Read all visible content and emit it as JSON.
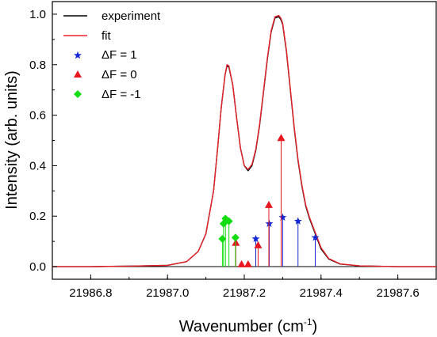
{
  "chart_data": {
    "type": "line",
    "xlabel": "Wavenumber (cm",
    "xlabel_sup": "-1",
    "xlabel_suffix": ")",
    "ylabel": "Intensity (arb. units)",
    "xlim": [
      21986.7,
      21987.7
    ],
    "ylim": [
      -0.05,
      1.05
    ],
    "xticks": [
      "21986.8",
      "21987.0",
      "21987.2",
      "21987.4",
      "21987.6"
    ],
    "xtick_values": [
      21986.8,
      21987.0,
      21987.2,
      21987.4,
      21987.6
    ],
    "yticks": [
      "0.0",
      "0.2",
      "0.4",
      "0.6",
      "0.8",
      "1.0"
    ],
    "ytick_values": [
      0.0,
      0.2,
      0.4,
      0.6,
      0.8,
      1.0
    ],
    "grid": false,
    "legend_position": "top-left",
    "series": [
      {
        "name": "experiment",
        "kind": "line",
        "color": "#000000",
        "x": [
          21986.7,
          21986.8,
          21986.9,
          21987.0,
          21987.05,
          21987.08,
          21987.1,
          21987.12,
          21987.13,
          21987.14,
          21987.15,
          21987.155,
          21987.16,
          21987.17,
          21987.18,
          21987.19,
          21987.2,
          21987.21,
          21987.22,
          21987.23,
          21987.24,
          21987.25,
          21987.26,
          21987.27,
          21987.28,
          21987.29,
          21987.295,
          21987.3,
          21987.31,
          21987.32,
          21987.33,
          21987.34,
          21987.35,
          21987.36,
          21987.37,
          21987.38,
          21987.39,
          21987.4,
          21987.42,
          21987.45,
          21987.5,
          21987.6,
          21987.7
        ],
        "y": [
          0.0,
          0.0,
          0.002,
          0.005,
          0.02,
          0.06,
          0.13,
          0.3,
          0.46,
          0.63,
          0.76,
          0.795,
          0.79,
          0.72,
          0.59,
          0.47,
          0.4,
          0.38,
          0.4,
          0.46,
          0.56,
          0.69,
          0.82,
          0.93,
          0.985,
          0.99,
          0.98,
          0.96,
          0.85,
          0.7,
          0.55,
          0.42,
          0.32,
          0.24,
          0.19,
          0.15,
          0.11,
          0.07,
          0.03,
          0.01,
          0.003,
          0.0,
          0.0
        ]
      },
      {
        "name": "fit",
        "kind": "line",
        "color": "#e8232a",
        "x": [
          21986.7,
          21986.8,
          21986.9,
          21987.0,
          21987.05,
          21987.08,
          21987.1,
          21987.12,
          21987.13,
          21987.14,
          21987.15,
          21987.155,
          21987.16,
          21987.17,
          21987.18,
          21987.19,
          21987.2,
          21987.21,
          21987.22,
          21987.23,
          21987.24,
          21987.25,
          21987.26,
          21987.27,
          21987.28,
          21987.29,
          21987.295,
          21987.3,
          21987.31,
          21987.32,
          21987.33,
          21987.34,
          21987.35,
          21987.36,
          21987.37,
          21987.38,
          21987.39,
          21987.4,
          21987.42,
          21987.45,
          21987.5,
          21987.6,
          21987.7
        ],
        "y": [
          0.0,
          0.0,
          0.002,
          0.005,
          0.02,
          0.06,
          0.13,
          0.3,
          0.46,
          0.63,
          0.76,
          0.8,
          0.795,
          0.72,
          0.59,
          0.47,
          0.4,
          0.385,
          0.405,
          0.465,
          0.565,
          0.695,
          0.825,
          0.935,
          0.99,
          0.995,
          0.985,
          0.965,
          0.855,
          0.705,
          0.555,
          0.425,
          0.325,
          0.245,
          0.195,
          0.155,
          0.115,
          0.075,
          0.032,
          0.011,
          0.003,
          0.0,
          0.0
        ]
      },
      {
        "name": "ΔF = 1",
        "kind": "stick",
        "marker": "star",
        "color": "#1428d2",
        "x": [
          21987.23,
          21987.265,
          21987.3,
          21987.34,
          21987.385
        ],
        "y": [
          0.11,
          0.17,
          0.195,
          0.18,
          0.115
        ]
      },
      {
        "name": "ΔF = 0",
        "kind": "stick",
        "marker": "triangle",
        "color": "#e8161e",
        "x": [
          21987.178,
          21987.193,
          21987.21,
          21987.236,
          21987.264,
          21987.296
        ],
        "y": [
          0.095,
          0.01,
          0.01,
          0.085,
          0.245,
          0.51
        ]
      },
      {
        "name": "ΔF = -1",
        "kind": "stick",
        "marker": "diamond",
        "color": "#12dd12",
        "x": [
          21987.143,
          21987.146,
          21987.151,
          21987.16,
          21987.177
        ],
        "y": [
          0.11,
          0.17,
          0.19,
          0.18,
          0.115
        ]
      }
    ]
  }
}
